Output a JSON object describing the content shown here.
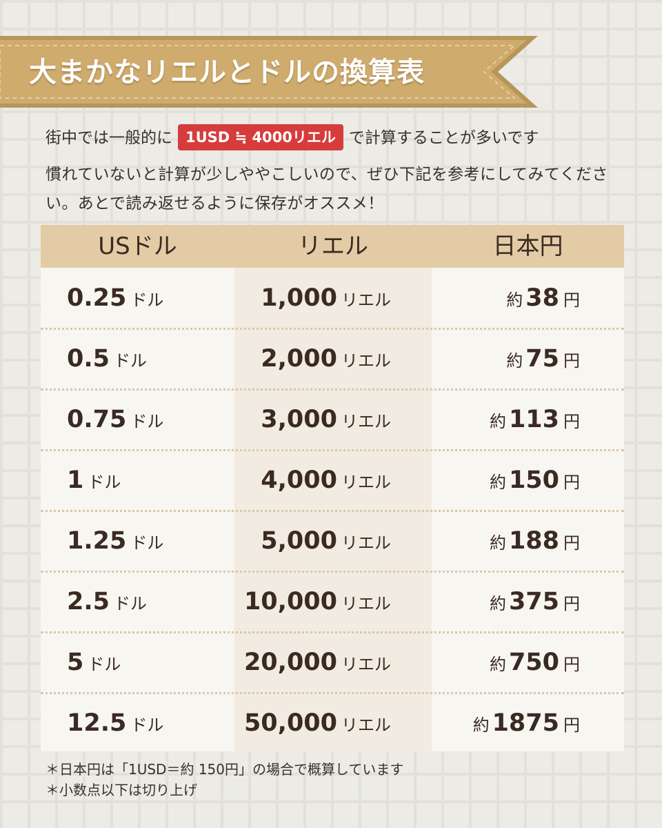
{
  "title": "大まかなリエルとドルの換算表",
  "intro": {
    "line1_before": "街中では一般的に",
    "badge": "1USD ≒ 4000リエル",
    "line1_after": "で計算することが多いです",
    "line2": "慣れていないと計算が少しややこしいので、ぜひ下記を参考にしてみてください。あとで読み返せるように保存がオススメ！"
  },
  "table": {
    "headers": [
      "USドル",
      "リエル",
      "日本円"
    ],
    "usd_unit": "ドル",
    "riel_unit": "リエル",
    "yen_prefix": "約",
    "yen_unit": "円",
    "rows": [
      {
        "usd": "0.25",
        "riel": "1,000",
        "yen": "38"
      },
      {
        "usd": "0.5",
        "riel": "2,000",
        "yen": "75"
      },
      {
        "usd": "0.75",
        "riel": "3,000",
        "yen": "113"
      },
      {
        "usd": "1",
        "riel": "4,000",
        "yen": "150"
      },
      {
        "usd": "1.25",
        "riel": "5,000",
        "yen": "188"
      },
      {
        "usd": "2.5",
        "riel": "10,000",
        "yen": "375"
      },
      {
        "usd": "5",
        "riel": "20,000",
        "yen": "750"
      },
      {
        "usd": "12.5",
        "riel": "50,000",
        "yen": "1875"
      }
    ]
  },
  "notes": [
    "＊日本円は「1USD＝約 150円」の場合で概算しています",
    "＊小数点以下は切り上げ"
  ],
  "colors": {
    "banner": "#c9a467",
    "badge": "#d63c3c",
    "header": "#e3cba6"
  }
}
